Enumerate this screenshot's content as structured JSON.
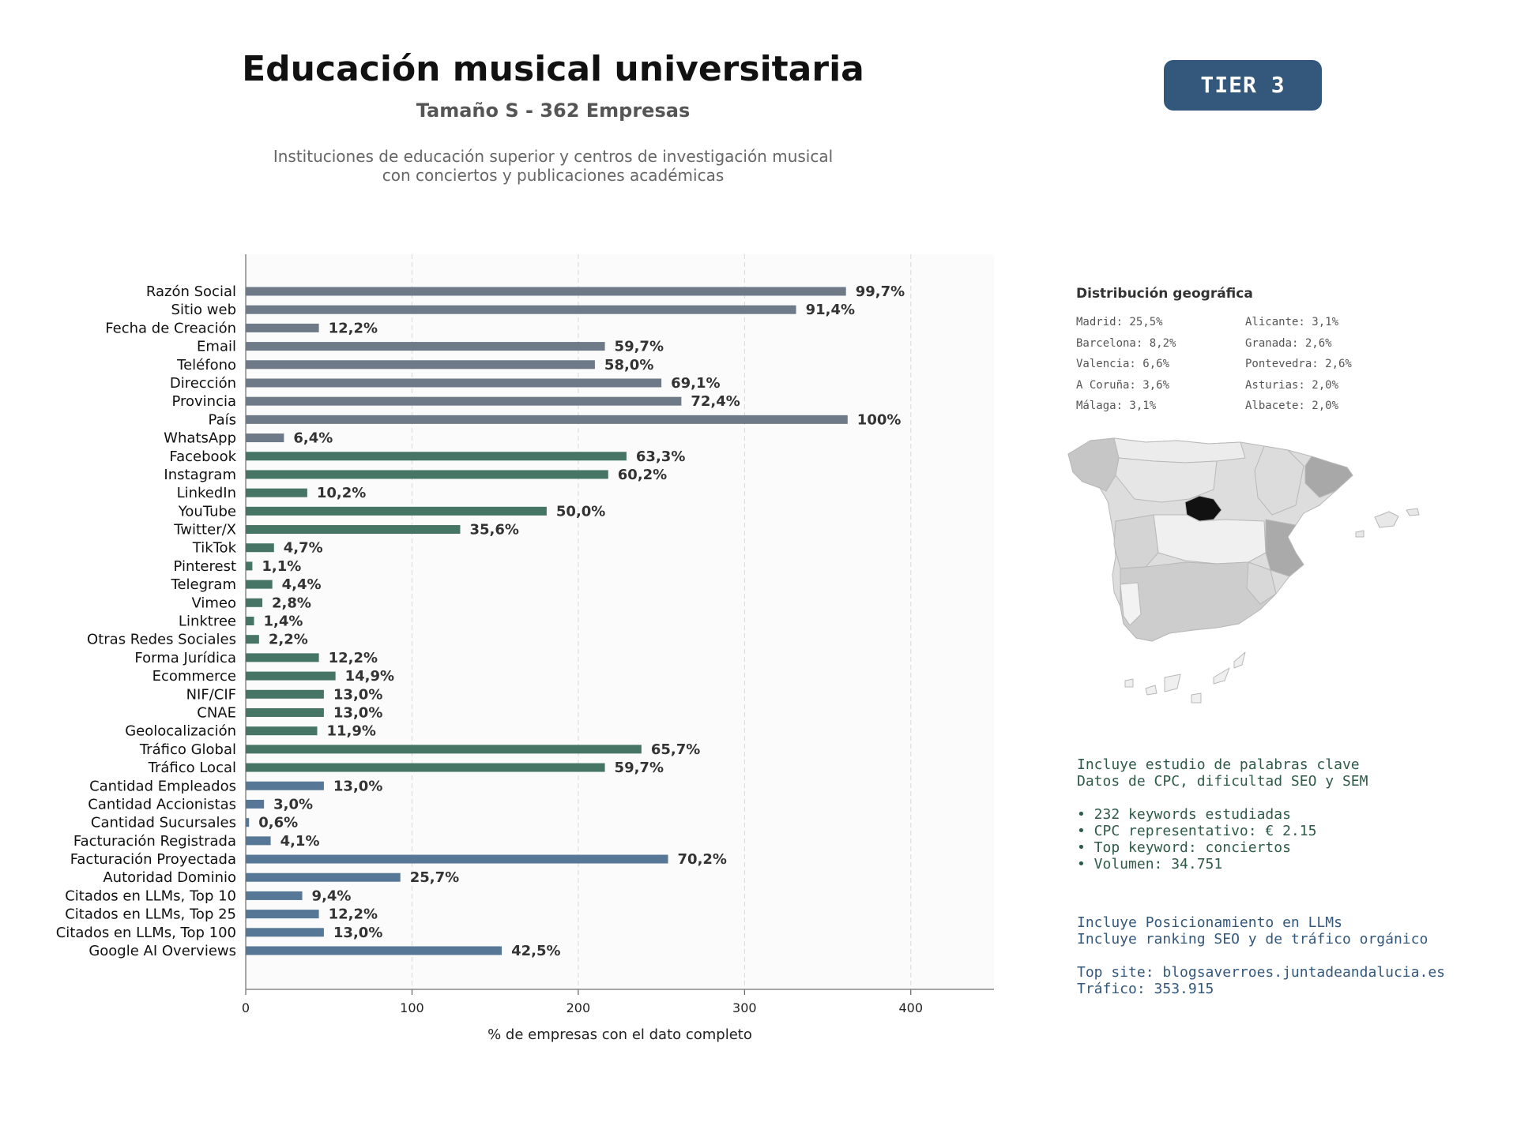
{
  "header": {
    "title": "Educación musical universitaria",
    "subtitle": "Tamaño S - 362 Empresas",
    "desc_line1": "Instituciones de educación superior y centros de investigación musical",
    "desc_line2": "con conciertos y publicaciones académicas",
    "tier": "TIER 3"
  },
  "chart_data": {
    "type": "bar",
    "orientation": "horizontal",
    "xlabel": "% de empresas con el dato completo",
    "xlim": [
      0,
      450
    ],
    "xticks": [
      0,
      100,
      200,
      300,
      400
    ],
    "grid": true,
    "colors": {
      "gray": "#6e7a87",
      "green": "#477565",
      "blue": "#577796"
    },
    "categories": [
      "Razón Social",
      "Sitio web",
      "Fecha de Creación",
      "Email",
      "Teléfono",
      "Dirección",
      "Provincia",
      "País",
      "WhatsApp",
      "Facebook",
      "Instagram",
      "LinkedIn",
      "YouTube",
      "Twitter/X",
      "TikTok",
      "Pinterest",
      "Telegram",
      "Vimeo",
      "Linktree",
      "Otras Redes Sociales",
      "Forma Jurídica",
      "Ecommerce",
      "NIF/CIF",
      "CNAE",
      "Geolocalización",
      "Tráfico Global",
      "Tráfico Local",
      "Cantidad Empleados",
      "Cantidad Accionistas",
      "Cantidad Sucursales",
      "Facturación Registrada",
      "Facturación Proyectada",
      "Autoridad Dominio",
      "Citados en LLMs, Top 10",
      "Citados en LLMs, Top 25",
      "Citados en LLMs, Top 100",
      "Google AI Overviews"
    ],
    "values": [
      361,
      331,
      44,
      216,
      210,
      250,
      262,
      362,
      23,
      229,
      218,
      37,
      181,
      129,
      17,
      4,
      16,
      10,
      5,
      8,
      44,
      54,
      47,
      47,
      43,
      238,
      216,
      47,
      11,
      2,
      15,
      254,
      93,
      34,
      44,
      47,
      154
    ],
    "labels": [
      "99,7%",
      "91,4%",
      "12,2%",
      "59,7%",
      "58,0%",
      "69,1%",
      "72,4%",
      "100%",
      "6,4%",
      "63,3%",
      "60,2%",
      "10,2%",
      "50,0%",
      "35,6%",
      "4,7%",
      "1,1%",
      "4,4%",
      "2,8%",
      "1,4%",
      "2,2%",
      "12,2%",
      "14,9%",
      "13,0%",
      "13,0%",
      "11,9%",
      "65,7%",
      "59,7%",
      "13,0%",
      "3,0%",
      "0,6%",
      "4,1%",
      "70,2%",
      "25,7%",
      "9,4%",
      "12,2%",
      "13,0%",
      "42,5%"
    ],
    "groups": [
      "gray",
      "gray",
      "gray",
      "gray",
      "gray",
      "gray",
      "gray",
      "gray",
      "gray",
      "green",
      "green",
      "green",
      "green",
      "green",
      "green",
      "green",
      "green",
      "green",
      "green",
      "green",
      "green",
      "green",
      "green",
      "green",
      "green",
      "green",
      "green",
      "blue",
      "blue",
      "blue",
      "blue",
      "blue",
      "blue",
      "blue",
      "blue",
      "blue",
      "blue"
    ]
  },
  "geo": {
    "title": "Distribución geográfica",
    "items": [
      "Madrid: 25,5%",
      "Barcelona: 8,2%",
      "Valencia: 6,6%",
      "A Coruña: 3,6%",
      "Málaga: 3,1%",
      "Alicante: 3,1%",
      "Granada: 2,6%",
      "Pontevedra: 2,6%",
      "Asturias: 2,0%",
      "Albacete: 2,0%"
    ]
  },
  "seo": {
    "line1": "Incluye estudio de palabras clave",
    "line2": "Datos de CPC, dificultad SEO y SEM",
    "bullet1": "• 232 keywords estudiadas",
    "bullet2": "• CPC representativo: € 2.15",
    "bullet3": "• Top keyword: conciertos",
    "bullet4": "• Volumen: 34.751"
  },
  "llm": {
    "line1": "Incluye Posicionamiento en LLMs",
    "line2": "Incluye ranking SEO y de tráfico orgánico",
    "line3": "Top site: blogsaverroes.juntadeandalucia.es",
    "line4": "Tráfico: 353.915"
  }
}
